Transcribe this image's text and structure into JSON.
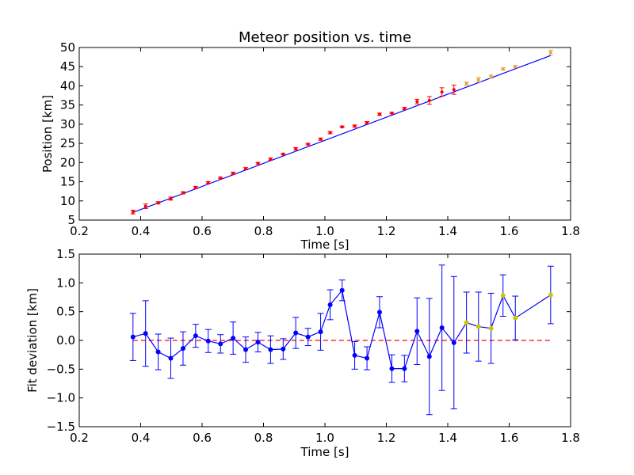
{
  "chart_data": [
    {
      "type": "scatter",
      "title": "Meteor position vs. time",
      "xlabel": "Time [s]",
      "ylabel": "Position [km]",
      "xlim": [
        0.2,
        1.8
      ],
      "ylim": [
        5,
        50
      ],
      "xticks": [
        "0.2",
        "0.4",
        "0.6",
        "0.8",
        "1.0",
        "1.2",
        "1.4",
        "1.6",
        "1.8"
      ],
      "yticks": [
        "5",
        "10",
        "15",
        "20",
        "25",
        "30",
        "35",
        "40",
        "45",
        "50"
      ],
      "grid": false,
      "colors": {
        "points": "#ff0000",
        "points_late": "#e8a33a",
        "fit": "#0000ff",
        "axes": "#000000"
      },
      "fit_line": {
        "x": [
          0.375,
          1.735
        ],
        "y": [
          7.0,
          47.9
        ]
      },
      "series": [
        {
          "x": [
            0.375,
            0.416,
            0.457,
            0.498,
            0.538,
            0.579,
            0.62,
            0.66,
            0.701,
            0.742,
            0.782,
            0.823,
            0.864,
            0.905,
            0.945,
            0.986,
            1.017,
            1.056,
            1.097,
            1.137,
            1.178,
            1.218,
            1.259,
            1.3,
            1.34,
            1.381,
            1.42
          ],
          "y": [
            7.1,
            8.6,
            9.5,
            10.6,
            12.1,
            13.5,
            14.8,
            16.0,
            17.2,
            18.4,
            19.8,
            20.9,
            22.2,
            23.6,
            24.8,
            26.1,
            27.8,
            29.3,
            29.5,
            30.4,
            32.6,
            32.9,
            34.1,
            35.9,
            36.2,
            38.4,
            39.0
          ],
          "err": [
            0.5,
            0.6,
            0.3,
            0.4,
            0.3,
            0.3,
            0.2,
            0.2,
            0.3,
            0.3,
            0.2,
            0.3,
            0.2,
            0.3,
            0.2,
            0.3,
            0.3,
            0.2,
            0.3,
            0.3,
            0.3,
            0.2,
            0.3,
            0.6,
            1.0,
            1.1,
            1.2
          ]
        },
        {
          "x": [
            1.461,
            1.5,
            1.541,
            1.58,
            1.62,
            1.735
          ],
          "y": [
            40.6,
            41.6,
            42.4,
            44.4,
            45.0,
            48.7
          ],
          "err": [
            0.4,
            0.6,
            0.4,
            0.3,
            0.3,
            0.6
          ]
        }
      ]
    },
    {
      "type": "line",
      "xlabel": "Time [s]",
      "ylabel": "Fit deviation [km]",
      "xlim": [
        0.2,
        1.8
      ],
      "ylim": [
        -1.5,
        1.5
      ],
      "xticks": [
        "0.2",
        "0.4",
        "0.6",
        "0.8",
        "1.0",
        "1.2",
        "1.4",
        "1.6",
        "1.8"
      ],
      "yticks": [
        "−1.5",
        "−1.0",
        "−0.5",
        "0.0",
        "0.5",
        "1.0",
        "1.5"
      ],
      "grid": false,
      "reference_line": {
        "y": 0.0,
        "style": "dashed",
        "color": "#ff0000"
      },
      "colors": {
        "line": "#0000ff",
        "markers": "#0000ff",
        "markers_late": "#c8c800",
        "errorbars": "#0000ff"
      },
      "series": [
        {
          "x": [
            0.375,
            0.416,
            0.457,
            0.498,
            0.538,
            0.579,
            0.62,
            0.66,
            0.701,
            0.742,
            0.782,
            0.823,
            0.864,
            0.905,
            0.945,
            0.986,
            1.017,
            1.056,
            1.097,
            1.137,
            1.178,
            1.218,
            1.259,
            1.3,
            1.34,
            1.381,
            1.42,
            1.461,
            1.5,
            1.541,
            1.58,
            1.62,
            1.735
          ],
          "y": [
            0.06,
            0.12,
            -0.2,
            -0.31,
            -0.14,
            0.08,
            -0.01,
            -0.06,
            0.04,
            -0.16,
            -0.03,
            -0.16,
            -0.15,
            0.13,
            0.06,
            0.15,
            0.62,
            0.87,
            -0.26,
            -0.31,
            0.49,
            -0.49,
            -0.49,
            0.16,
            -0.28,
            0.22,
            -0.04,
            0.31,
            0.24,
            0.21,
            0.78,
            0.39,
            0.79
          ],
          "err": [
            0.41,
            0.57,
            0.31,
            0.35,
            0.29,
            0.2,
            0.2,
            0.16,
            0.28,
            0.22,
            0.17,
            0.24,
            0.18,
            0.27,
            0.15,
            0.32,
            0.26,
            0.18,
            0.24,
            0.2,
            0.27,
            0.24,
            0.23,
            0.58,
            1.01,
            1.09,
            1.15,
            0.53,
            0.6,
            0.61,
            0.36,
            0.38,
            0.5
          ]
        }
      ]
    }
  ]
}
